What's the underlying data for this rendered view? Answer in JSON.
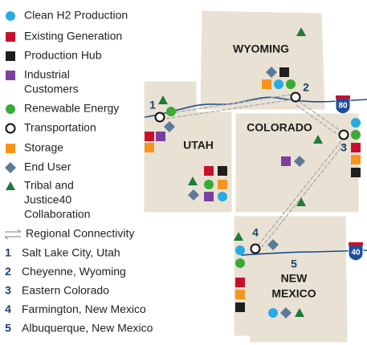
{
  "legend": [
    {
      "label": [
        "Clean H2 Production"
      ]
    },
    {
      "label": [
        "Existing Generation"
      ]
    },
    {
      "label": [
        "Production Hub"
      ]
    },
    {
      "label": [
        "Industrial",
        "Customers"
      ]
    },
    {
      "label": [
        "Renewable Energy"
      ]
    },
    {
      "label": [
        "Transportation"
      ]
    },
    {
      "label": [
        "Storage"
      ]
    },
    {
      "label": [
        "End User"
      ]
    },
    {
      "label": [
        "Tribal and",
        "Justice40",
        "Collaboration"
      ]
    },
    {
      "label": [
        "Regional Connectivity"
      ]
    }
  ],
  "sites": [
    {
      "number": 1,
      "name": "Salt Lake City, Utah"
    },
    {
      "number": 2,
      "name": "Cheyenne, Wyoming"
    },
    {
      "number": 3,
      "name": "Eastern Colorado"
    },
    {
      "number": 4,
      "name": "Farmington, New Mexico"
    },
    {
      "number": 5,
      "name": "Albuquerque, New Mexico"
    }
  ],
  "states": [
    {
      "label": [
        "WYOMING"
      ]
    },
    {
      "label": [
        "UTAH"
      ]
    },
    {
      "label": [
        "COLORADO"
      ]
    },
    {
      "label": [
        "NEW",
        "MEXICO"
      ]
    }
  ],
  "interstates": [
    "80",
    "40"
  ]
}
